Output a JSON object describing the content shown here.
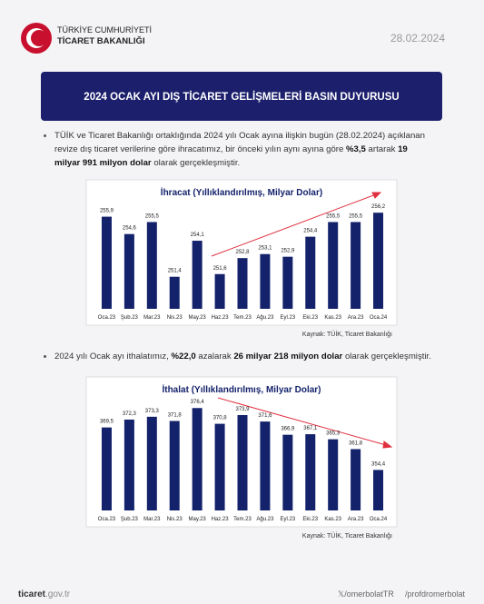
{
  "header": {
    "line1": "TÜRKİYE CUMHURİYETİ",
    "line2": "TİCARET BAKANLIĞI",
    "date": "28.02.2024"
  },
  "banner_title": "2024 OCAK AYI DIŞ TİCARET GELİŞMELERİ BASIN DUYURUSU",
  "bullets": [
    {
      "segments": [
        {
          "text": "TÜİK ve Ticaret Bakanlığı ortaklığında 2024 yılı Ocak ayına ilişkin bugün (28.02.2024) açıklanan revize dış ticaret verilerine göre ihracatımız, bir önceki yılın aynı ayına göre ",
          "bold": false
        },
        {
          "text": "%3,5",
          "bold": true
        },
        {
          "text": " artarak ",
          "bold": false
        },
        {
          "text": "19 milyar 991 milyon dolar",
          "bold": true
        },
        {
          "text": " olarak gerçekleşmiştir.",
          "bold": false
        }
      ]
    },
    {
      "segments": [
        {
          "text": "2024 yılı Ocak ayı ithalatımız, ",
          "bold": false
        },
        {
          "text": "%22,0",
          "bold": true
        },
        {
          "text": " azalarak ",
          "bold": false
        },
        {
          "text": "26 milyar 218 milyon dolar",
          "bold": true
        },
        {
          "text": " olarak gerçekleşmiştir.",
          "bold": false
        }
      ]
    }
  ],
  "chart_data": [
    {
      "type": "bar",
      "title": "İhracat (Yıllıklandırılmış, Milyar Dolar)",
      "color": "#14226b",
      "categories": [
        "Oca.23",
        "Şub.23",
        "Mar.23",
        "Nis.23",
        "May.23",
        "Haz.23",
        "Tem.23",
        "Ağu.23",
        "Eyl.23",
        "Eki.23",
        "Kas.23",
        "Ara.23",
        "Oca.24"
      ],
      "values": [
        255.9,
        254.6,
        255.5,
        251.4,
        254.1,
        251.6,
        252.8,
        253.1,
        252.9,
        254.4,
        255.5,
        255.5,
        256.2
      ],
      "value_labels": [
        "255,9",
        "254,6",
        "255,5",
        "251,4",
        "254,1",
        "251,6",
        "252,8",
        "253,1",
        "252,9",
        "254,4",
        "255,5",
        "255,5",
        "256,2"
      ],
      "ylim": [
        249,
        257.3
      ],
      "source": "Kaynak: TÜİK, Ticaret Bakanlığı"
    },
    {
      "type": "bar",
      "title": "İthalat (Yıllıklandırılmış, Milyar Dolar)",
      "color": "#14226b",
      "categories": [
        "Oca.23",
        "Şub.23",
        "Mar.23",
        "Nis.23",
        "May.23",
        "Haz.23",
        "Tem.23",
        "Ağu.23",
        "Eyl.23",
        "Eki.23",
        "Kas.23",
        "Ara.23",
        "Oca.24"
      ],
      "values": [
        369.5,
        372.3,
        373.3,
        371.8,
        376.4,
        370.8,
        373.9,
        371.6,
        366.9,
        367.1,
        365.3,
        361.8,
        354.4
      ],
      "value_labels": [
        "369,5",
        "372,3",
        "373,3",
        "371,8",
        "376,4",
        "370,8",
        "373,9",
        "371,6",
        "366,9",
        "367,1",
        "365,3",
        "361,8",
        "354,4"
      ],
      "ylim": [
        340,
        381
      ],
      "source": "Kaynak: TÜİK, Ticaret Bakanlığı"
    }
  ],
  "footer": {
    "site_bold": "ticaret",
    "site_rest": ".gov.tr",
    "twitter": "/omerbolatTR",
    "social": "/profdromerbolat"
  }
}
